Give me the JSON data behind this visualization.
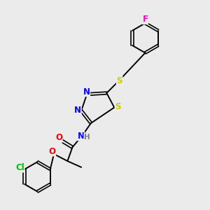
{
  "bg_color": "#ebebeb",
  "bond_color": "#000000",
  "atom_colors": {
    "N": "#0000ff",
    "O": "#ff0000",
    "S": "#cccc00",
    "Cl": "#00bb00",
    "F": "#ff00cc",
    "H": "#808080"
  },
  "figsize": [
    3.0,
    3.0
  ],
  "dpi": 100
}
